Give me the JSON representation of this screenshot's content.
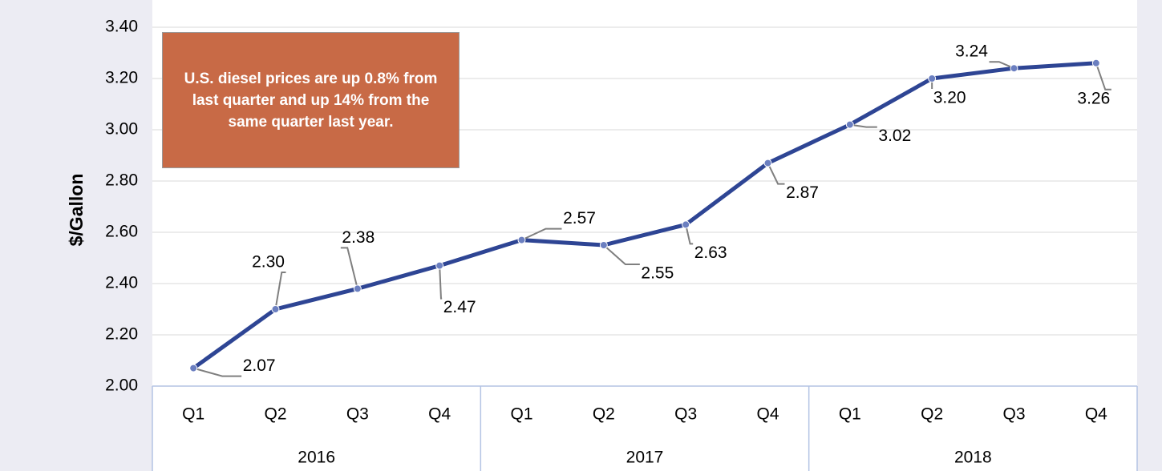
{
  "chart_data": {
    "type": "line",
    "y_axis_label": "$/Gallon",
    "annotation": "U.S. diesel prices are up 0.8% from last quarter and up 14% from the same quarter last year.",
    "categories": [
      "Q1",
      "Q2",
      "Q3",
      "Q4",
      "Q1",
      "Q2",
      "Q3",
      "Q4",
      "Q1",
      "Q2",
      "Q3",
      "Q4"
    ],
    "category_groups": [
      "2016",
      "2017",
      "2018"
    ],
    "values": [
      2.07,
      2.3,
      2.38,
      2.47,
      2.57,
      2.55,
      2.63,
      2.87,
      3.02,
      3.2,
      3.24,
      3.26
    ],
    "value_labels": [
      "2.07",
      "2.30",
      "2.38",
      "2.47",
      "2.57",
      "2.55",
      "2.63",
      "2.87",
      "3.02",
      "3.20",
      "3.24",
      "3.26"
    ],
    "color": "#2e4594",
    "ylim": [
      2.0,
      3.4
    ],
    "yticks": [
      {
        "value": 2.0,
        "label": "2.00"
      },
      {
        "value": 2.2,
        "label": "2.20"
      },
      {
        "value": 2.4,
        "label": "2.40"
      },
      {
        "value": 2.6,
        "label": "2.60"
      },
      {
        "value": 2.8,
        "label": "2.80"
      },
      {
        "value": 3.0,
        "label": "3.00"
      },
      {
        "value": 3.2,
        "label": "3.20"
      },
      {
        "value": 3.4,
        "label": "3.40"
      }
    ],
    "grid": true
  }
}
